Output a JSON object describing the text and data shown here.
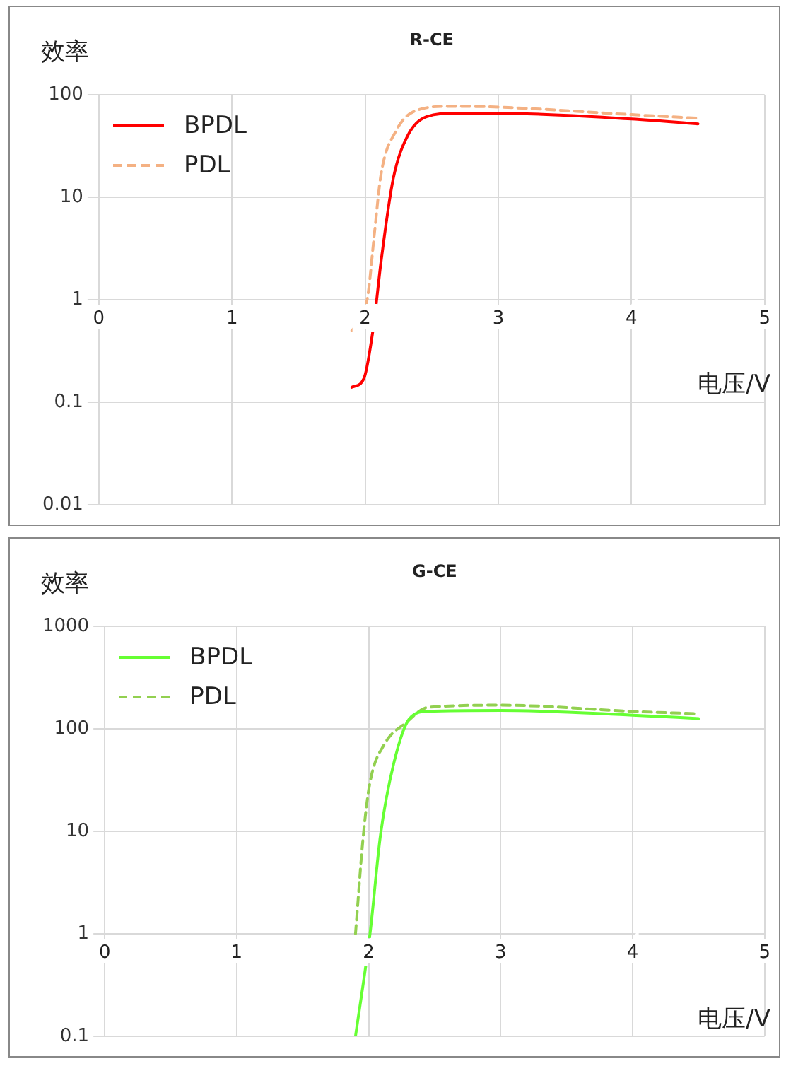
{
  "chart_data": [
    {
      "type": "line",
      "title": "R-CE",
      "xlabel": "电压/V",
      "ylabel": "效率",
      "log": "y",
      "grid": true,
      "legend": "top left",
      "marker": "none",
      "xlim": [
        0,
        5
      ],
      "xticks": [
        0,
        1,
        2,
        3,
        4,
        5
      ],
      "ylim": [
        0.01,
        100
      ],
      "yticks": [
        0.01,
        0.1,
        1,
        10,
        100
      ],
      "series": [
        {
          "name": "BPDL",
          "color": "#ff0000",
          "line_style": "solid",
          "x": [
            1.9,
            1.99,
            2.06,
            2.12,
            2.21,
            2.32,
            2.46,
            2.68,
            2.97,
            4.0,
            4.5
          ],
          "values": [
            0.14,
            0.17,
            0.52,
            2.4,
            15,
            40,
            61,
            66,
            66,
            58,
            52
          ]
        },
        {
          "name": "PDL",
          "color": "#f4b183",
          "line_style": "dashed",
          "x": [
            1.9,
            1.97,
            2.02,
            2.07,
            2.12,
            2.23,
            2.37,
            2.63,
            2.97,
            4.0,
            4.5
          ],
          "values": [
            0.5,
            0.65,
            1.1,
            4.5,
            17,
            44,
            69,
            77,
            76,
            64,
            59
          ]
        }
      ]
    },
    {
      "type": "line",
      "title": "G-CE",
      "xlabel": "电压/V",
      "ylabel": "效率",
      "log": "y",
      "grid": true,
      "legend": "top left",
      "marker": "none",
      "xlim": [
        0,
        5
      ],
      "xticks": [
        0,
        1,
        2,
        3,
        4,
        5
      ],
      "ylim": [
        0.1,
        1000
      ],
      "yticks": [
        0.1,
        1,
        10,
        100,
        1000
      ],
      "series": [
        {
          "name": "BPDL",
          "color": "#66ff33",
          "line_style": "solid",
          "x": [
            1.9,
            2.01,
            2.09,
            2.19,
            2.31,
            2.45,
            3.0,
            4.0,
            4.5
          ],
          "values": [
            0.1,
            1,
            9.3,
            46,
            126,
            148,
            151,
            136,
            126
          ]
        },
        {
          "name": "PDL",
          "color": "#92d050",
          "line_style": "dashed",
          "x": [
            1.9,
            1.96,
            2.01,
            2.12,
            2.28,
            2.45,
            3.0,
            4.0,
            4.5
          ],
          "values": [
            1,
            9.3,
            30,
            71,
            114,
            162,
            170,
            148,
            140
          ]
        }
      ]
    }
  ]
}
